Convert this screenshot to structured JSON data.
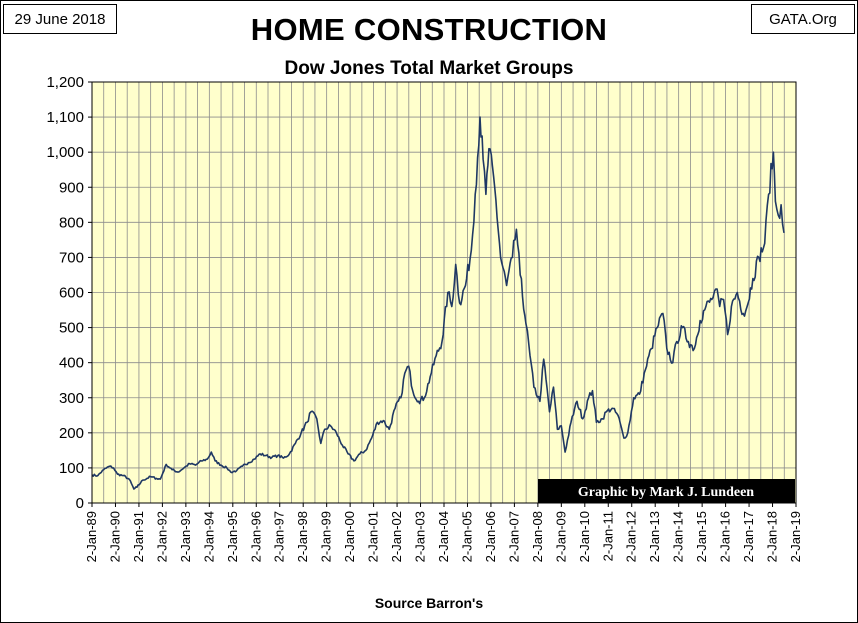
{
  "header": {
    "date": "29 June 2018",
    "site": "GATA.Org",
    "title": "HOME CONSTRUCTION",
    "subtitle": "Dow Jones Total Market Groups"
  },
  "footer": {
    "source": "Source Barron's",
    "credit": "Graphic by Mark J. Lundeen"
  },
  "colors": {
    "plot_background": "#ffffcc",
    "grid": "#8c8c8c",
    "line": "#1f3864",
    "credit_background": "#000000",
    "credit_text": "#ffffff"
  },
  "chart_data": {
    "type": "line",
    "title": "HOME CONSTRUCTION",
    "subtitle": "Dow Jones Total Market Groups",
    "xlabel": "Source Barron's",
    "ylabel": "",
    "ylim": [
      0,
      1200
    ],
    "y_ticks": [
      "0",
      "100",
      "200",
      "300",
      "400",
      "500",
      "600",
      "700",
      "800",
      "900",
      "1,000",
      "1,100",
      "1,200"
    ],
    "x_ticks": [
      "2-Jan-89",
      "2-Jan-90",
      "2-Jan-91",
      "2-Jan-92",
      "2-Jan-93",
      "2-Jan-94",
      "2-Jan-95",
      "2-Jan-96",
      "2-Jan-97",
      "2-Jan-98",
      "2-Jan-99",
      "2-Jan-00",
      "2-Jan-01",
      "2-Jan-02",
      "2-Jan-03",
      "2-Jan-04",
      "2-Jan-05",
      "2-Jan-06",
      "2-Jan-07",
      "2-Jan-08",
      "2-Jan-09",
      "2-Jan-10",
      "2-Jan-11",
      "2-Jan-12",
      "2-Jan-13",
      "2-Jan-14",
      "2-Jan-15",
      "2-Jan-16",
      "2-Jan-17",
      "2-Jan-18",
      "2-Jan-19"
    ],
    "grid": true,
    "series": [
      {
        "values": [
          [
            "1989-01-02",
            80
          ],
          [
            "1989-04-01",
            78
          ],
          [
            "1989-07-01",
            95
          ],
          [
            "1989-10-01",
            105
          ],
          [
            "1989-12-01",
            100
          ],
          [
            "1990-02-01",
            82
          ],
          [
            "1990-05-01",
            78
          ],
          [
            "1990-08-01",
            68
          ],
          [
            "1990-10-15",
            40
          ],
          [
            "1990-12-01",
            45
          ],
          [
            "1991-03-01",
            65
          ],
          [
            "1991-07-01",
            75
          ],
          [
            "1991-10-01",
            70
          ],
          [
            "1991-12-01",
            68
          ],
          [
            "1992-03-01",
            110
          ],
          [
            "1992-06-01",
            95
          ],
          [
            "1992-09-01",
            88
          ],
          [
            "1992-12-01",
            100
          ],
          [
            "1993-03-01",
            112
          ],
          [
            "1993-06-01",
            108
          ],
          [
            "1993-09-01",
            120
          ],
          [
            "1993-12-01",
            125
          ],
          [
            "1994-02-01",
            145
          ],
          [
            "1994-04-01",
            120
          ],
          [
            "1994-07-01",
            108
          ],
          [
            "1994-10-01",
            100
          ],
          [
            "1994-12-01",
            88
          ],
          [
            "1995-03-01",
            92
          ],
          [
            "1995-06-01",
            105
          ],
          [
            "1995-09-01",
            115
          ],
          [
            "1995-12-01",
            125
          ],
          [
            "1996-03-01",
            140
          ],
          [
            "1996-06-01",
            135
          ],
          [
            "1996-09-01",
            130
          ],
          [
            "1996-12-01",
            135
          ],
          [
            "1997-03-01",
            128
          ],
          [
            "1997-06-01",
            140
          ],
          [
            "1997-09-01",
            170
          ],
          [
            "1997-12-01",
            200
          ],
          [
            "1998-03-01",
            230
          ],
          [
            "1998-05-01",
            260
          ],
          [
            "1998-08-01",
            240
          ],
          [
            "1998-10-01",
            170
          ],
          [
            "1998-12-01",
            210
          ],
          [
            "1999-03-01",
            220
          ],
          [
            "1999-06-01",
            200
          ],
          [
            "1999-09-01",
            165
          ],
          [
            "1999-12-01",
            140
          ],
          [
            "2000-03-01",
            120
          ],
          [
            "2000-06-01",
            140
          ],
          [
            "2000-09-01",
            150
          ],
          [
            "2000-12-01",
            185
          ],
          [
            "2001-03-01",
            230
          ],
          [
            "2001-06-01",
            235
          ],
          [
            "2001-09-01",
            210
          ],
          [
            "2001-12-01",
            270
          ],
          [
            "2002-03-01",
            300
          ],
          [
            "2002-05-01",
            370
          ],
          [
            "2002-07-01",
            390
          ],
          [
            "2002-09-01",
            320
          ],
          [
            "2002-12-01",
            290
          ],
          [
            "2003-03-01",
            300
          ],
          [
            "2003-06-01",
            360
          ],
          [
            "2003-09-01",
            420
          ],
          [
            "2003-12-01",
            460
          ],
          [
            "2004-03-01",
            600
          ],
          [
            "2004-05-01",
            560
          ],
          [
            "2004-07-01",
            680
          ],
          [
            "2004-09-01",
            570
          ],
          [
            "2004-12-01",
            620
          ],
          [
            "2005-03-01",
            720
          ],
          [
            "2005-05-01",
            880
          ],
          [
            "2005-07-15",
            1100
          ],
          [
            "2005-09-01",
            980
          ],
          [
            "2005-10-15",
            880
          ],
          [
            "2005-12-01",
            1010
          ],
          [
            "2006-03-01",
            900
          ],
          [
            "2006-06-01",
            700
          ],
          [
            "2006-09-01",
            620
          ],
          [
            "2006-12-01",
            700
          ],
          [
            "2007-02-01",
            780
          ],
          [
            "2007-04-01",
            650
          ],
          [
            "2007-07-01",
            510
          ],
          [
            "2007-09-01",
            420
          ],
          [
            "2007-11-01",
            330
          ],
          [
            "2008-02-01",
            290
          ],
          [
            "2008-04-01",
            410
          ],
          [
            "2008-07-01",
            260
          ],
          [
            "2008-09-01",
            330
          ],
          [
            "2008-11-01",
            210
          ],
          [
            "2009-01-01",
            220
          ],
          [
            "2009-03-01",
            145
          ],
          [
            "2009-06-01",
            230
          ],
          [
            "2009-09-01",
            290
          ],
          [
            "2009-12-01",
            240
          ],
          [
            "2010-03-01",
            300
          ],
          [
            "2010-05-01",
            320
          ],
          [
            "2010-07-01",
            230
          ],
          [
            "2010-10-01",
            240
          ],
          [
            "2010-12-01",
            260
          ],
          [
            "2011-03-01",
            270
          ],
          [
            "2011-06-01",
            250
          ],
          [
            "2011-09-01",
            185
          ],
          [
            "2011-11-01",
            200
          ],
          [
            "2012-02-01",
            300
          ],
          [
            "2012-05-01",
            310
          ],
          [
            "2012-08-01",
            380
          ],
          [
            "2012-11-01",
            440
          ],
          [
            "2013-02-01",
            500
          ],
          [
            "2013-05-01",
            540
          ],
          [
            "2013-07-01",
            440
          ],
          [
            "2013-10-01",
            400
          ],
          [
            "2013-12-01",
            460
          ],
          [
            "2014-03-01",
            500
          ],
          [
            "2014-06-01",
            460
          ],
          [
            "2014-09-01",
            440
          ],
          [
            "2014-12-01",
            520
          ],
          [
            "2015-03-01",
            560
          ],
          [
            "2015-06-01",
            580
          ],
          [
            "2015-08-01",
            610
          ],
          [
            "2015-10-01",
            560
          ],
          [
            "2015-12-01",
            580
          ],
          [
            "2016-02-01",
            480
          ],
          [
            "2016-04-01",
            560
          ],
          [
            "2016-07-01",
            600
          ],
          [
            "2016-10-01",
            540
          ],
          [
            "2016-12-01",
            560
          ],
          [
            "2017-03-01",
            640
          ],
          [
            "2017-06-01",
            700
          ],
          [
            "2017-09-01",
            740
          ],
          [
            "2017-11-01",
            880
          ],
          [
            "2018-01-15",
            1000
          ],
          [
            "2018-02-15",
            860
          ],
          [
            "2018-04-01",
            820
          ],
          [
            "2018-05-15",
            850
          ],
          [
            "2018-06-29",
            770
          ]
        ]
      }
    ]
  }
}
